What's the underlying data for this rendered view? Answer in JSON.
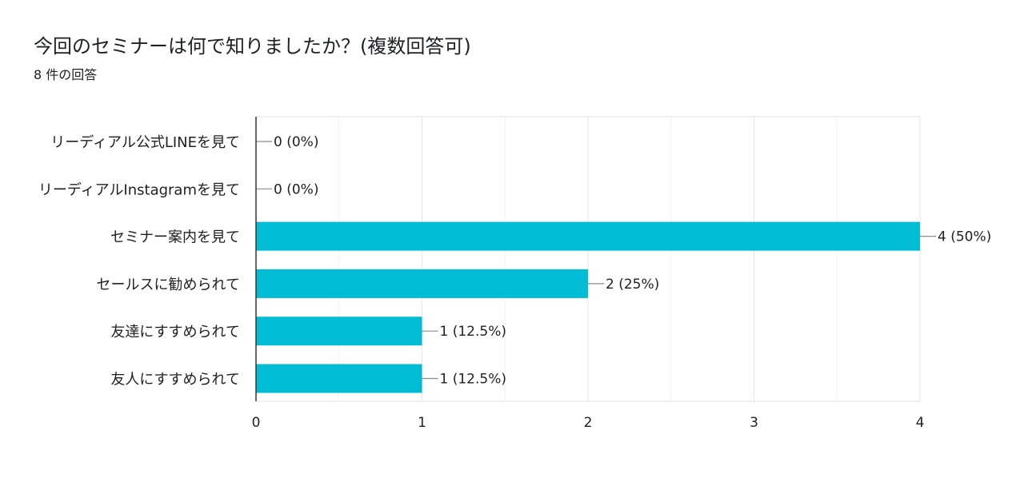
{
  "question": {
    "title": "今回のセミナーは何で知りましたか？(複数回答可)",
    "response_count": "8 件の回答"
  },
  "chart_data": {
    "type": "bar",
    "orientation": "horizontal",
    "title": "今回のセミナーは何で知りましたか？(複数回答可)",
    "subtitle": "8 件の回答",
    "categories": [
      "リーディアル公式LINEを見て",
      "リーディアルInstagramを見て",
      "セミナー案内を見て",
      "セールスに勧められて",
      "友達にすすめられて",
      "友人にすすめられて"
    ],
    "values": [
      0,
      0,
      4,
      2,
      1,
      1
    ],
    "value_labels": [
      "0 (0%)",
      "0 (0%)",
      "4 (50%)",
      "2 (25%)",
      "1 (12.5%)",
      "1 (12.5%)"
    ],
    "xlim": [
      0,
      4
    ],
    "x_ticks": [
      "0",
      "1",
      "2",
      "3",
      "4"
    ],
    "grid": true,
    "legend": "none",
    "bar_color": "#00BCD4"
  }
}
